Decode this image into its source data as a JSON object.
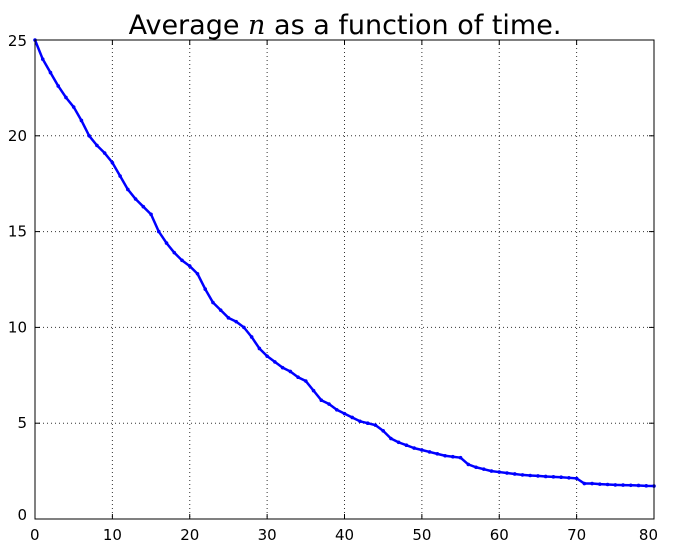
{
  "chart_data": {
    "type": "line",
    "title_prefix": "Average ",
    "title_var": "n",
    "title_suffix": " as a function of time.",
    "xlim": [
      0,
      80
    ],
    "ylim": [
      0,
      25
    ],
    "xticks": [
      0,
      10,
      20,
      30,
      40,
      50,
      60,
      70,
      80
    ],
    "yticks": [
      0,
      5,
      10,
      15,
      20,
      25
    ],
    "grid": true,
    "line_color": "#0000ff",
    "series": [
      {
        "x": [
          0,
          1,
          2,
          3,
          4,
          5,
          6,
          7,
          8,
          9,
          10,
          11,
          12,
          13,
          14,
          15,
          16,
          17,
          18,
          19,
          20,
          21,
          22,
          23,
          24,
          25,
          26,
          27,
          28,
          29,
          30,
          31,
          32,
          33,
          34,
          35,
          36,
          37,
          38,
          39,
          40,
          41,
          42,
          43,
          44,
          45,
          46,
          47,
          48,
          49,
          50,
          51,
          52,
          53,
          54,
          55,
          56,
          57,
          58,
          59,
          60,
          61,
          62,
          63,
          64,
          65,
          66,
          67,
          68,
          69,
          70,
          71,
          72,
          73,
          74,
          75,
          76,
          77,
          78,
          79,
          80
        ],
        "y": [
          25.0,
          24.0,
          23.3,
          22.6,
          22.0,
          21.5,
          20.8,
          20.0,
          19.5,
          19.1,
          18.6,
          17.9,
          17.2,
          16.7,
          16.3,
          15.9,
          15.0,
          14.4,
          13.9,
          13.5,
          13.2,
          12.8,
          12.0,
          11.3,
          10.9,
          10.5,
          10.3,
          10.0,
          9.5,
          8.9,
          8.5,
          8.2,
          7.9,
          7.7,
          7.4,
          7.2,
          6.7,
          6.2,
          6.0,
          5.7,
          5.5,
          5.3,
          5.1,
          5.0,
          4.9,
          4.6,
          4.2,
          4.0,
          3.85,
          3.7,
          3.6,
          3.5,
          3.4,
          3.3,
          3.25,
          3.2,
          2.85,
          2.7,
          2.6,
          2.5,
          2.45,
          2.4,
          2.35,
          2.3,
          2.27,
          2.25,
          2.22,
          2.2,
          2.18,
          2.15,
          2.12,
          1.85,
          1.85,
          1.82,
          1.8,
          1.78,
          1.77,
          1.76,
          1.75,
          1.73,
          1.72
        ]
      }
    ]
  }
}
